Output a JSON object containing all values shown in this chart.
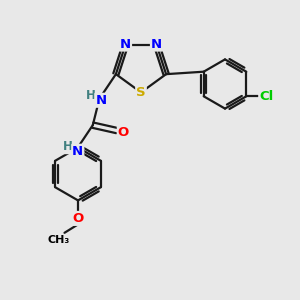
{
  "bg_color": "#e8e8e8",
  "atom_colors": {
    "C": "#000000",
    "N": "#0000ff",
    "O": "#ff0000",
    "S": "#ccaa00",
    "Cl": "#00cc00",
    "H": "#408080"
  },
  "bond_color": "#1a1a1a",
  "lw": 1.6
}
